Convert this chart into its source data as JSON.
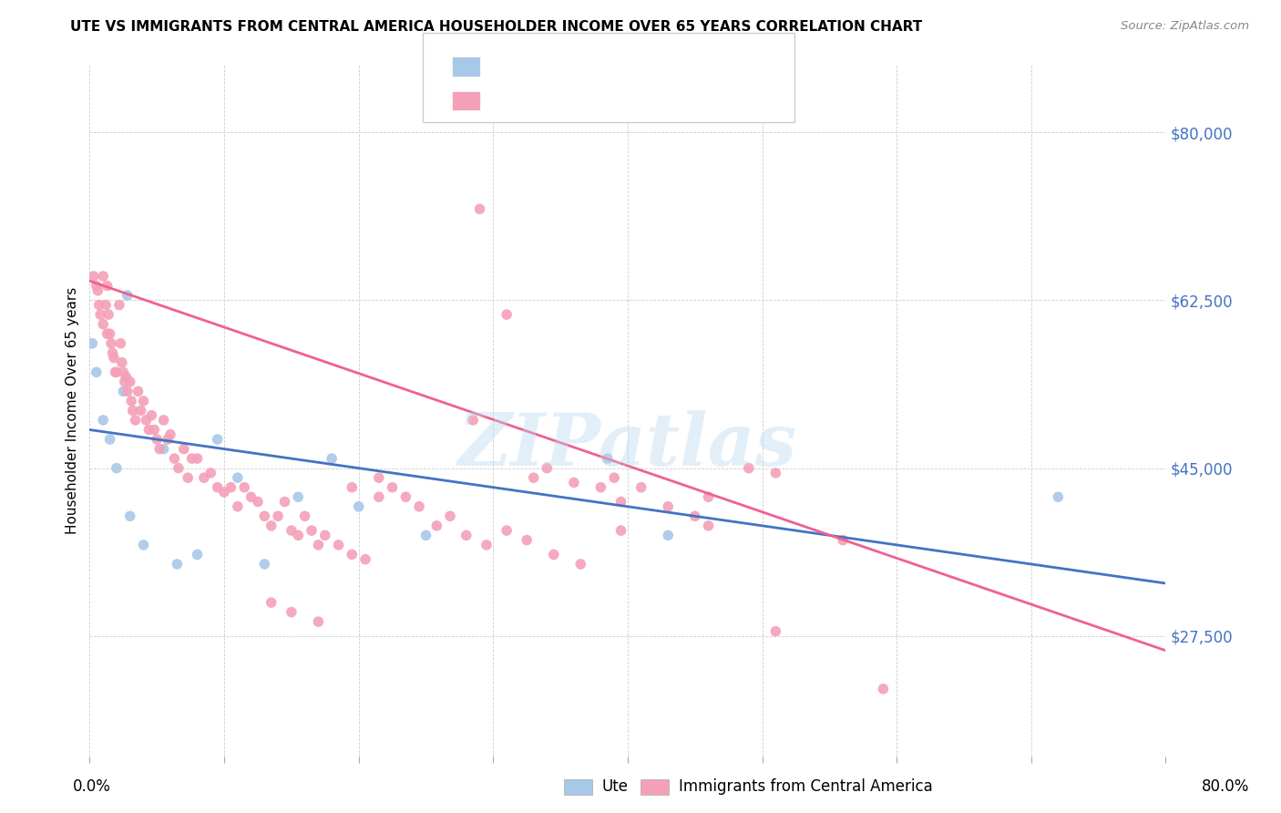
{
  "title": "UTE VS IMMIGRANTS FROM CENTRAL AMERICA HOUSEHOLDER INCOME OVER 65 YEARS CORRELATION CHART",
  "source": "Source: ZipAtlas.com",
  "ylabel": "Householder Income Over 65 years",
  "legend_label_blue": "Ute",
  "legend_label_pink": "Immigrants from Central America",
  "yticks": [
    27500,
    45000,
    62500,
    80000
  ],
  "ytick_labels": [
    "$27,500",
    "$45,000",
    "$62,500",
    "$80,000"
  ],
  "xmin": 0.0,
  "xmax": 0.8,
  "ymin": 15000,
  "ymax": 87000,
  "blue_color": "#a8c8e8",
  "pink_color": "#f4a0b8",
  "blue_line_color": "#4472c4",
  "pink_line_color": "#f06090",
  "tick_color": "#4472c4",
  "watermark": "ZIPatlas",
  "blue_scatter_x": [
    0.002,
    0.028,
    0.005,
    0.01,
    0.015,
    0.02,
    0.025,
    0.03,
    0.04,
    0.055,
    0.065,
    0.08,
    0.095,
    0.11,
    0.13,
    0.155,
    0.18,
    0.2,
    0.25,
    0.385,
    0.43,
    0.72
  ],
  "blue_scatter_y": [
    58000,
    63000,
    55000,
    50000,
    48000,
    45000,
    53000,
    40000,
    37000,
    47000,
    35000,
    36000,
    48000,
    44000,
    35000,
    42000,
    46000,
    41000,
    38000,
    46000,
    38000,
    42000
  ],
  "pink_scatter_x": [
    0.003,
    0.005,
    0.006,
    0.007,
    0.008,
    0.01,
    0.01,
    0.012,
    0.013,
    0.013,
    0.014,
    0.015,
    0.016,
    0.017,
    0.018,
    0.019,
    0.02,
    0.022,
    0.023,
    0.024,
    0.025,
    0.026,
    0.027,
    0.028,
    0.03,
    0.031,
    0.032,
    0.034,
    0.036,
    0.038,
    0.04,
    0.042,
    0.044,
    0.046,
    0.048,
    0.05,
    0.052,
    0.055,
    0.058,
    0.06,
    0.063,
    0.066,
    0.07,
    0.073,
    0.076,
    0.08,
    0.085,
    0.09,
    0.095,
    0.1,
    0.105,
    0.11,
    0.115,
    0.12,
    0.125,
    0.13,
    0.135,
    0.14,
    0.145,
    0.15,
    0.155,
    0.16,
    0.165,
    0.17,
    0.175,
    0.185,
    0.195,
    0.205,
    0.215,
    0.225,
    0.235,
    0.245,
    0.258,
    0.268,
    0.28,
    0.295,
    0.31,
    0.325,
    0.345,
    0.365,
    0.39,
    0.41,
    0.43,
    0.45,
    0.46,
    0.285,
    0.34,
    0.36,
    0.38,
    0.395,
    0.135,
    0.15,
    0.17,
    0.195,
    0.215,
    0.395,
    0.46,
    0.49,
    0.51,
    0.56,
    0.29,
    0.31,
    0.33,
    0.51,
    0.59
  ],
  "pink_scatter_y": [
    65000,
    64000,
    63500,
    62000,
    61000,
    65000,
    60000,
    62000,
    59000,
    64000,
    61000,
    59000,
    58000,
    57000,
    56500,
    55000,
    55000,
    62000,
    58000,
    56000,
    55000,
    54000,
    54500,
    53000,
    54000,
    52000,
    51000,
    50000,
    53000,
    51000,
    52000,
    50000,
    49000,
    50500,
    49000,
    48000,
    47000,
    50000,
    48000,
    48500,
    46000,
    45000,
    47000,
    44000,
    46000,
    46000,
    44000,
    44500,
    43000,
    42500,
    43000,
    41000,
    43000,
    42000,
    41500,
    40000,
    39000,
    40000,
    41500,
    38500,
    38000,
    40000,
    38500,
    37000,
    38000,
    37000,
    36000,
    35500,
    44000,
    43000,
    42000,
    41000,
    39000,
    40000,
    38000,
    37000,
    38500,
    37500,
    36000,
    35000,
    44000,
    43000,
    41000,
    40000,
    42000,
    50000,
    45000,
    43500,
    43000,
    41500,
    31000,
    30000,
    29000,
    43000,
    42000,
    38500,
    39000,
    45000,
    44500,
    37500,
    72000,
    61000,
    44000,
    28000,
    22000
  ],
  "blue_trend_x": [
    0.0,
    0.8
  ],
  "blue_trend_y": [
    49000,
    33000
  ],
  "pink_trend_x": [
    0.0,
    0.8
  ],
  "pink_trend_y": [
    64500,
    26000
  ]
}
